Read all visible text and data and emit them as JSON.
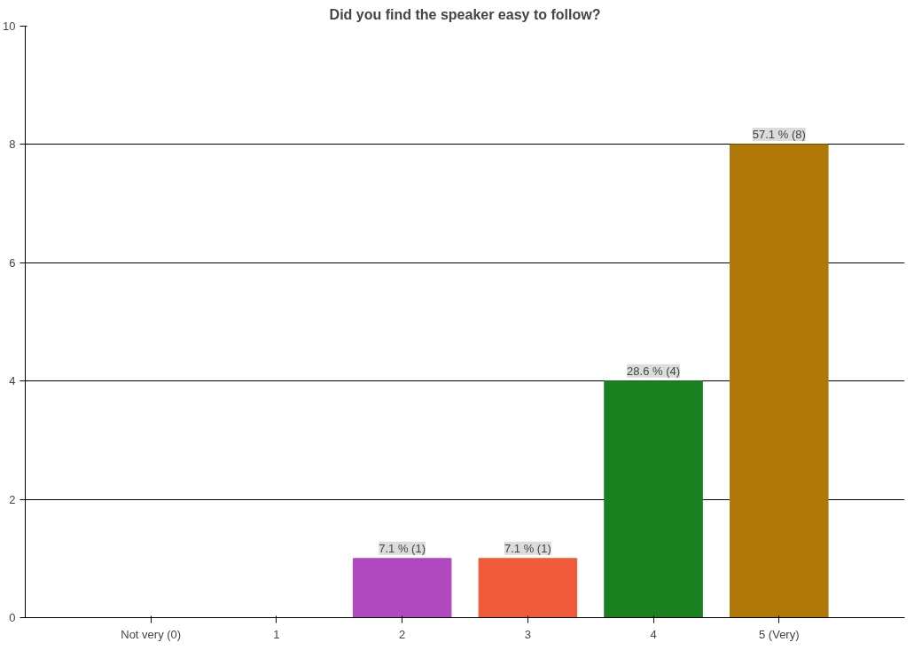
{
  "chart_data": {
    "type": "bar",
    "title": "Did you find the speaker easy to follow?",
    "categories": [
      "Not very (0)",
      "1",
      "2",
      "3",
      "4",
      "5 (Very)"
    ],
    "values": [
      0,
      0,
      1,
      1,
      4,
      8
    ],
    "colors": [
      null,
      null,
      "#b048c0",
      "#f05a3a",
      "#1a8020",
      "#b07808"
    ],
    "value_labels": [
      null,
      null,
      "7.1 % (1)",
      "7.1 % (1)",
      "28.6 % (4)",
      "57.1 % (8)"
    ],
    "ylim": [
      0,
      10
    ],
    "yticks": [
      0,
      2,
      4,
      6,
      8,
      10
    ],
    "grid": "y"
  }
}
